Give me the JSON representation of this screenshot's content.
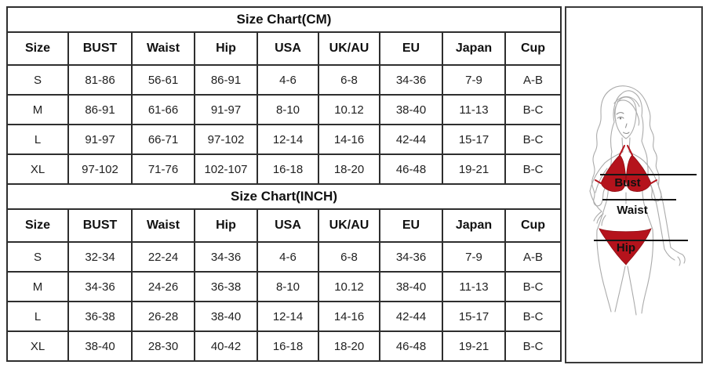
{
  "cm_table": {
    "title": "Size Chart(CM)",
    "headers": [
      "Size",
      "BUST",
      "Waist",
      "Hip",
      "USA",
      "UK/AU",
      "EU",
      "Japan",
      "Cup"
    ],
    "rows": [
      [
        "S",
        "81-86",
        "56-61",
        "86-91",
        "4-6",
        "6-8",
        "34-36",
        "7-9",
        "A-B"
      ],
      [
        "M",
        "86-91",
        "61-66",
        "91-97",
        "8-10",
        "10.12",
        "38-40",
        "11-13",
        "B-C"
      ],
      [
        "L",
        "91-97",
        "66-71",
        "97-102",
        "12-14",
        "14-16",
        "42-44",
        "15-17",
        "B-C"
      ],
      [
        "XL",
        "97-102",
        "71-76",
        "102-107",
        "16-18",
        "18-20",
        "46-48",
        "19-21",
        "B-C"
      ]
    ]
  },
  "inch_table": {
    "title": "Size Chart(INCH)",
    "headers": [
      "Size",
      "BUST",
      "Waist",
      "Hip",
      "USA",
      "UK/AU",
      "EU",
      "Japan",
      "Cup"
    ],
    "rows": [
      [
        "S",
        "32-34",
        "22-24",
        "34-36",
        "4-6",
        "6-8",
        "34-36",
        "7-9",
        "A-B"
      ],
      [
        "M",
        "34-36",
        "24-26",
        "36-38",
        "8-10",
        "10.12",
        "38-40",
        "11-13",
        "B-C"
      ],
      [
        "L",
        "36-38",
        "26-28",
        "38-40",
        "12-14",
        "14-16",
        "42-44",
        "15-17",
        "B-C"
      ],
      [
        "XL",
        "38-40",
        "28-30",
        "40-42",
        "16-18",
        "18-20",
        "46-48",
        "19-21",
        "B-C"
      ]
    ]
  },
  "figure": {
    "labels": {
      "bust": "Bust",
      "waist": "Waist",
      "hip": "Hip"
    },
    "colors": {
      "bikini_red": "#b5131c",
      "sketch_gray": "#ababab",
      "line_black": "#151515"
    }
  }
}
